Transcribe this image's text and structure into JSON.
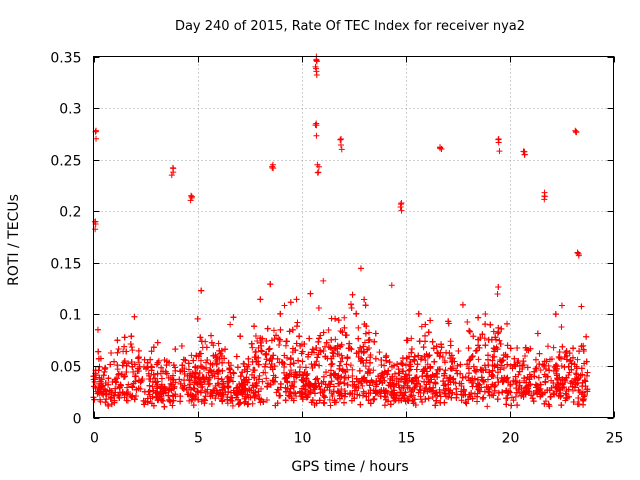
{
  "chart_data": {
    "type": "scatter",
    "title": "Day 240 of 2015, Rate Of TEC Index for receiver nya2",
    "xlabel": "GPS time / hours",
    "ylabel": "ROTI / TECUs",
    "xlim": [
      0,
      25
    ],
    "ylim": [
      0,
      0.35
    ],
    "xticks": [
      0,
      5,
      10,
      15,
      20,
      25
    ],
    "xtick_labels": [
      "0",
      "5",
      "10",
      "15",
      "20",
      "25"
    ],
    "yticks": [
      0,
      0.05,
      0.1,
      0.15,
      0.2,
      0.25,
      0.3,
      0.35
    ],
    "ytick_labels": [
      "0",
      "0.05",
      "0.1",
      "0.15",
      "0.2",
      "0.25",
      "0.3",
      "0.35"
    ],
    "grid": true,
    "marker": "+",
    "color": "#ff0000",
    "series": [
      {
        "name": "ROTI",
        "x_range_hours": [
          0,
          23.75
        ],
        "typical_range": [
          0.01,
          0.15
        ],
        "notable_points": [
          {
            "x": 0.1,
            "y": 0.278
          },
          {
            "x": 0.1,
            "y": 0.19
          },
          {
            "x": 3.8,
            "y": 0.242
          },
          {
            "x": 4.7,
            "y": 0.215
          },
          {
            "x": 8.6,
            "y": 0.245
          },
          {
            "x": 10.7,
            "y": 0.35
          },
          {
            "x": 10.7,
            "y": 0.34
          },
          {
            "x": 10.7,
            "y": 0.285
          },
          {
            "x": 10.8,
            "y": 0.245
          },
          {
            "x": 11.9,
            "y": 0.27
          },
          {
            "x": 14.8,
            "y": 0.208
          },
          {
            "x": 16.7,
            "y": 0.262
          },
          {
            "x": 19.5,
            "y": 0.27
          },
          {
            "x": 20.7,
            "y": 0.258
          },
          {
            "x": 21.7,
            "y": 0.218
          },
          {
            "x": 23.2,
            "y": 0.278
          },
          {
            "x": 23.3,
            "y": 0.16
          }
        ]
      }
    ]
  }
}
